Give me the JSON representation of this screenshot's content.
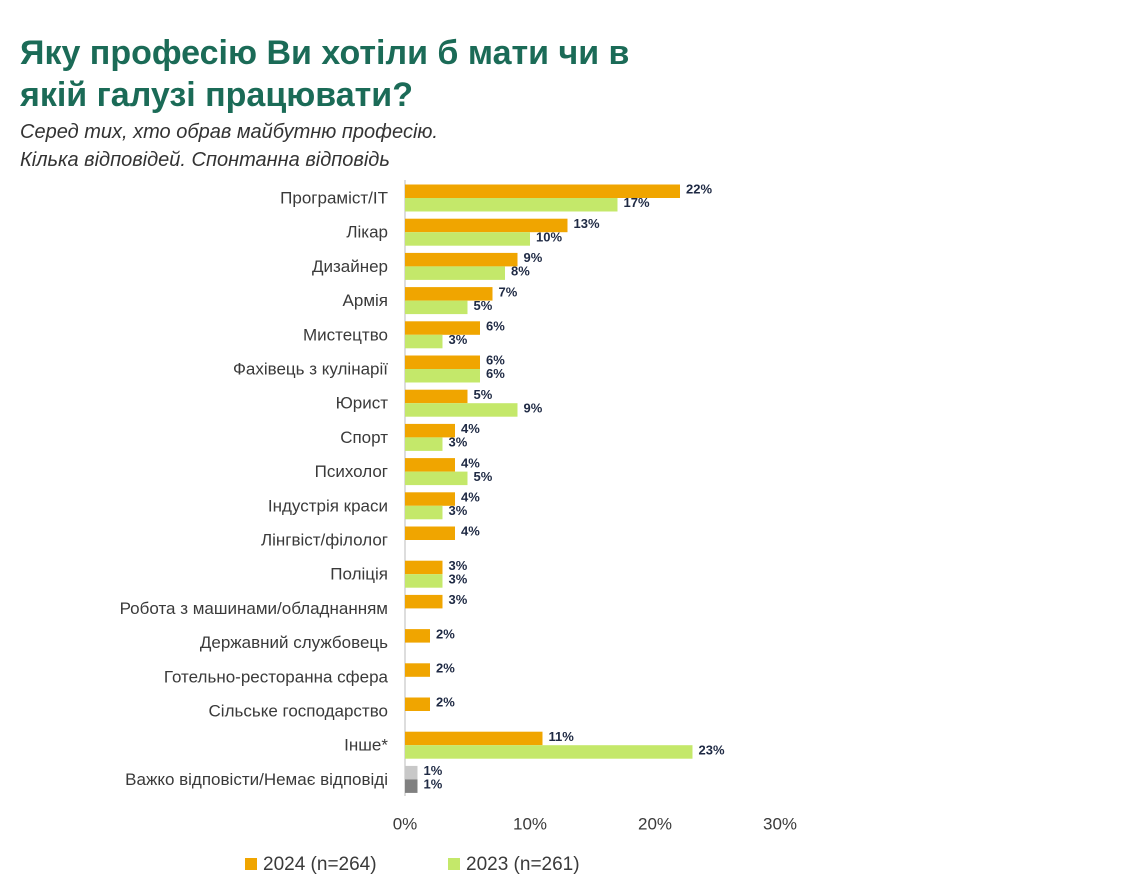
{
  "chart_data": {
    "type": "hbar",
    "title": [
      "Яку  професію Ви хотіли б мати чи в",
      "якій галузі працювати?"
    ],
    "subtitle": [
      "Серед тих, хто обрав майбутню професію.",
      "Кілька відповідей. Спонтанна відповідь"
    ],
    "categories": [
      "Програміст/IT",
      "Лікар",
      "Дизайнер",
      "Армія",
      "Мистецтво",
      "Фахівець з кулінарії",
      "Юрист",
      "Спорт",
      "Психолог",
      "Індустрія краси",
      "Лінгвіст/філолог",
      "Поліція",
      "Робота з машинами/обладнанням",
      "Державний службовець",
      "Готельно-ресторанна сфера",
      "Сільське господарство",
      "Інше*",
      "Важко відповісти/Немає відповіді"
    ],
    "series": [
      {
        "name": "2024 (n=264)",
        "color": "#f0a500",
        "colors": [
          "#f0a500",
          "#f0a500",
          "#f0a500",
          "#f0a500",
          "#f0a500",
          "#f0a500",
          "#f0a500",
          "#f0a500",
          "#f0a500",
          "#f0a500",
          "#f0a500",
          "#f0a500",
          "#f0a500",
          "#f0a500",
          "#f0a500",
          "#f0a500",
          "#f0a500",
          "#c8c8c8"
        ],
        "values": [
          22,
          13,
          9,
          7,
          6,
          6,
          5,
          4,
          4,
          4,
          4,
          3,
          3,
          2,
          2,
          2,
          11,
          1
        ],
        "value_labels": [
          "22%",
          "13%",
          "9%",
          "7%",
          "6%",
          "6%",
          "5%",
          "4%",
          "4%",
          "4%",
          "4%",
          "3%",
          "3%",
          "2%",
          "2%",
          "2%",
          "11%",
          "1%"
        ]
      },
      {
        "name": "2023 (n=261)",
        "color": "#c4e86a",
        "colors": [
          "#c4e86a",
          "#c4e86a",
          "#c4e86a",
          "#c4e86a",
          "#c4e86a",
          "#c4e86a",
          "#c4e86a",
          "#c4e86a",
          "#c4e86a",
          "#c4e86a",
          "#c4e86a",
          "#c4e86a",
          "#c4e86a",
          "#c4e86a",
          "#c4e86a",
          "#c4e86a",
          "#c4e86a",
          "#808080"
        ],
        "values": [
          17,
          10,
          8,
          5,
          3,
          6,
          9,
          3,
          5,
          3,
          null,
          3,
          null,
          null,
          null,
          null,
          23,
          1
        ],
        "value_labels": [
          "17%",
          "10%",
          "8%",
          "5%",
          "3%",
          "6%",
          "9%",
          "3%",
          "5%",
          "3%",
          null,
          "3%",
          null,
          null,
          null,
          null,
          "23%",
          "1%"
        ]
      }
    ],
    "xlim": [
      0,
      30
    ],
    "xticks": [
      {
        "value": 0,
        "label": "0%"
      },
      {
        "value": 10,
        "label": "10%"
      },
      {
        "value": 20,
        "label": "20%"
      },
      {
        "value": 30,
        "label": "30%"
      }
    ]
  }
}
